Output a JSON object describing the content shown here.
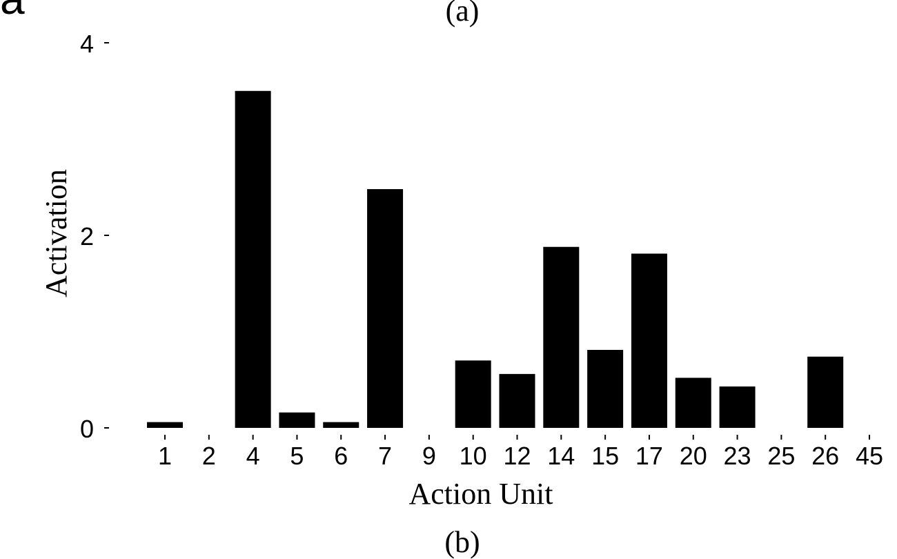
{
  "panel_letter": "a",
  "panel_top_caption": "(a)",
  "panel_bottom_caption": "(b)",
  "chart_data": {
    "type": "bar",
    "title": "",
    "xlabel": "Action Unit",
    "ylabel": "Activation",
    "categories": [
      "1",
      "2",
      "4",
      "5",
      "6",
      "7",
      "9",
      "10",
      "12",
      "14",
      "15",
      "17",
      "20",
      "23",
      "25",
      "26",
      "45"
    ],
    "values": [
      0.06,
      0.0,
      3.5,
      0.16,
      0.06,
      2.48,
      0.0,
      0.7,
      0.56,
      1.88,
      0.81,
      1.81,
      0.52,
      0.43,
      0.0,
      0.74,
      0.0
    ],
    "yticks": [
      0,
      2,
      4
    ],
    "ylim": [
      0,
      4
    ],
    "grid": false,
    "bar_color": "#000000"
  }
}
